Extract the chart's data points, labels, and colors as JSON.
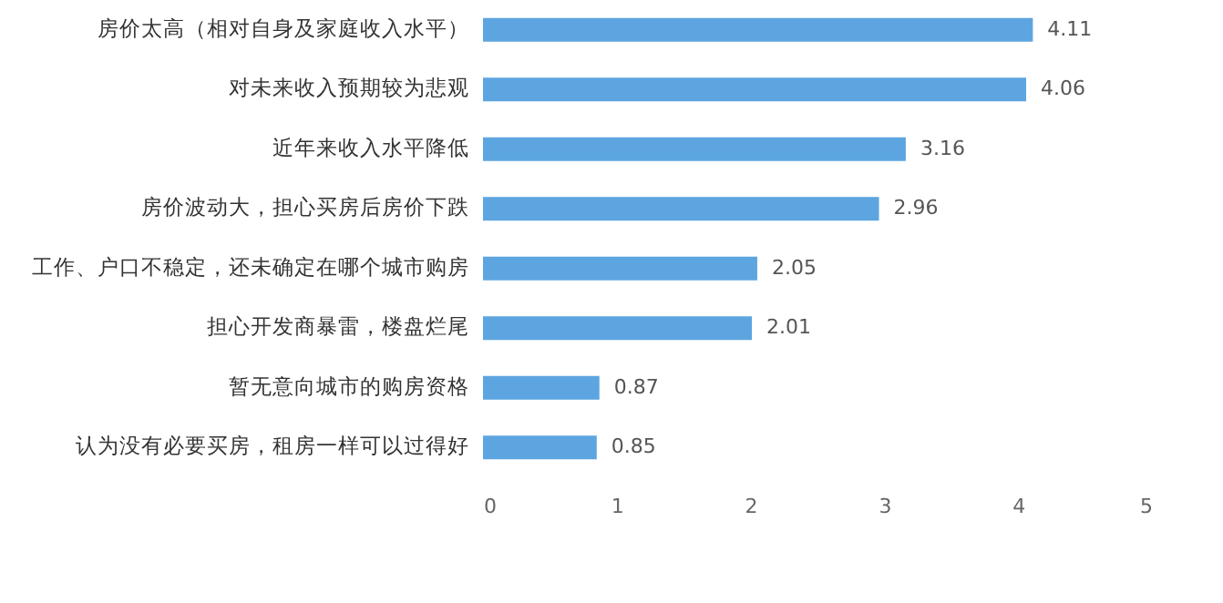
{
  "chart_data": {
    "type": "bar",
    "orientation": "horizontal",
    "categories": [
      "房价太高（相对自身及家庭收入水平）",
      "对未来收入预期较为悲观",
      "近年来收入水平降低",
      "房价波动大，担心买房后房价下跌",
      "工作、户口不稳定，还未确定在哪个城市购房",
      "担心开发商暴雷，楼盘烂尾",
      "暂无意向城市的购房资格",
      "认为没有必要买房，租房一样可以过得好"
    ],
    "values": [
      4.11,
      4.06,
      3.16,
      2.96,
      2.05,
      2.01,
      0.87,
      0.85
    ],
    "color": "#5da5e0",
    "xlim": [
      0,
      5
    ],
    "xticks": [
      0,
      1,
      2,
      3,
      4,
      5
    ],
    "grid": false,
    "data_labels": true
  }
}
